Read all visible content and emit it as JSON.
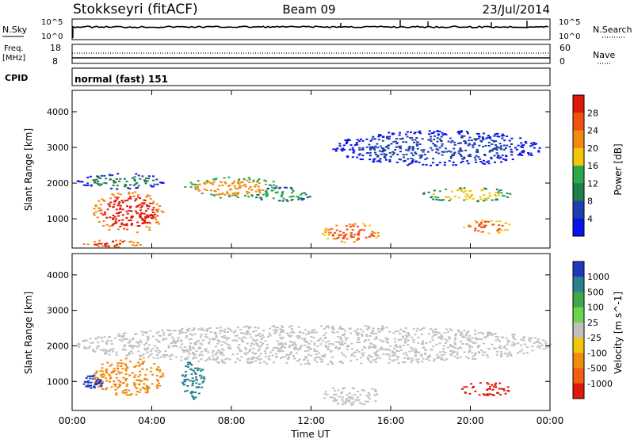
{
  "header": {
    "station": "Stokkseyri (fitACF)",
    "beam": "Beam 09",
    "date": "23/Jul/2014"
  },
  "nsky_panel": {
    "left_label": "N.Sky",
    "right_label": "N.Search",
    "ticks_left": [
      "10^5",
      "10^0"
    ],
    "ticks_right": [
      "10^5",
      "10^0"
    ]
  },
  "freq_panel": {
    "left_label_1": "Freq.",
    "left_label_2": "[MHz]",
    "right_label": "Nave",
    "ticks_left": [
      "18",
      "8"
    ],
    "ticks_right": [
      "60",
      "0"
    ]
  },
  "cpid": {
    "label": "CPID",
    "value": "normal (fast) 151"
  },
  "colors": {
    "power_scale": [
      "#0a14e8",
      "#1e3fb0",
      "#1f7f4a",
      "#2aa84a",
      "#f2c70a",
      "#f08a10",
      "#f05010",
      "#e01a0a"
    ],
    "velocity_scale": [
      "#2038c0",
      "#2a8090",
      "#3fa84a",
      "#6ad44a",
      "#c0c0c0",
      "#f2c70a",
      "#f08a10",
      "#f06010",
      "#e01a0a"
    ]
  },
  "chart_data": [
    {
      "type": "heatmap",
      "title": "Power",
      "xlabel": "Time UT",
      "ylabel": "Slant Range [km]",
      "x_ticks": [
        "00:00",
        "04:00",
        "08:00",
        "12:00",
        "16:00",
        "20:00",
        "00:00"
      ],
      "x_range_hours": [
        0,
        24
      ],
      "y_ticks": [
        1000,
        2000,
        3000,
        4000
      ],
      "ylim": [
        180,
        4600
      ],
      "colorbar": {
        "label": "Power [dB]",
        "ticks": [
          4,
          8,
          12,
          16,
          20,
          24,
          28
        ],
        "range": [
          0,
          32
        ]
      },
      "regions": [
        {
          "t0": 0.2,
          "t1": 4.6,
          "r0": 1850,
          "r1": 2300,
          "level": 10
        },
        {
          "t0": 1.0,
          "t1": 4.6,
          "r0": 600,
          "r1": 1800,
          "level": 29
        },
        {
          "t0": 0.5,
          "t1": 3.5,
          "r0": 220,
          "r1": 420,
          "level": 28
        },
        {
          "t0": 5.5,
          "t1": 10.5,
          "r0": 1600,
          "r1": 2200,
          "level": 20
        },
        {
          "t0": 9.0,
          "t1": 12.0,
          "r0": 1500,
          "r1": 1900,
          "level": 14
        },
        {
          "t0": 12.5,
          "t1": 15.5,
          "r0": 350,
          "r1": 900,
          "level": 27
        },
        {
          "t0": 17.5,
          "t1": 22.0,
          "r0": 1500,
          "r1": 1900,
          "level": 18
        },
        {
          "t0": 19.5,
          "t1": 22.0,
          "r0": 600,
          "r1": 1000,
          "level": 24
        },
        {
          "t0": 13.0,
          "t1": 23.5,
          "r0": 2500,
          "r1": 3500,
          "level": 6
        }
      ]
    },
    {
      "type": "heatmap",
      "title": "Velocity",
      "xlabel": "Time UT",
      "ylabel": "Slant Range [km]",
      "x_ticks": [
        "00:00",
        "04:00",
        "08:00",
        "12:00",
        "16:00",
        "20:00",
        "00:00"
      ],
      "x_range_hours": [
        0,
        24
      ],
      "y_ticks": [
        1000,
        2000,
        3000,
        4000
      ],
      "ylim": [
        180,
        4600
      ],
      "colorbar": {
        "label": "Velocity [m s^-1]",
        "ticks": [
          1000,
          500,
          100,
          25,
          -25,
          -100,
          -500,
          -1000
        ]
      },
      "regions": [
        {
          "t0": 0.2,
          "t1": 24.0,
          "r0": 1500,
          "r1": 2600,
          "level": 0
        },
        {
          "t0": 1.0,
          "t1": 4.6,
          "r0": 600,
          "r1": 1700,
          "level": -300
        },
        {
          "t0": 0.5,
          "t1": 1.5,
          "r0": 800,
          "r1": 1200,
          "level": 800
        },
        {
          "t0": 5.4,
          "t1": 6.6,
          "r0": 500,
          "r1": 1700,
          "level": 300
        },
        {
          "t0": 19.5,
          "t1": 22.0,
          "r0": 600,
          "r1": 1000,
          "level": -700
        },
        {
          "t0": 12.5,
          "t1": 15.5,
          "r0": 350,
          "r1": 900,
          "level": 0
        }
      ]
    }
  ]
}
